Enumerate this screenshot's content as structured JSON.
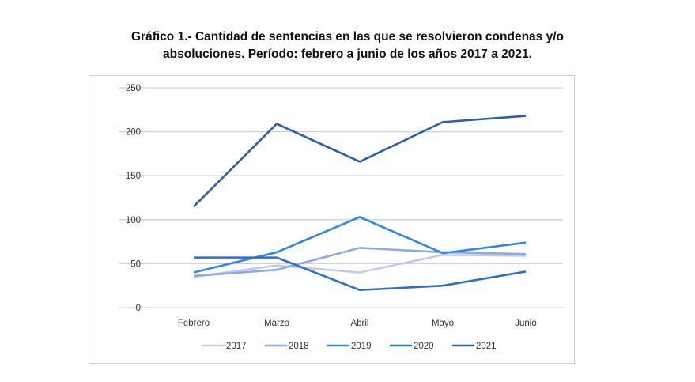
{
  "chart_data": {
    "type": "line",
    "title": [
      "Gráfico 1.- Cantidad de sentencias en las que se resolvieron condenas y/o",
      "absoluciones. Período: febrero a junio de los años 2017 a 2021."
    ],
    "categories": [
      "Febrero",
      "Marzo",
      "Abril",
      "Mayo",
      "Junio"
    ],
    "ylim": [
      0,
      250
    ],
    "yticks": [
      0,
      50,
      100,
      150,
      200,
      250
    ],
    "grid": true,
    "legend": "bottom",
    "series": [
      {
        "name": "2017",
        "color": "#c3c8ee",
        "values": [
          35,
          48,
          40,
          60,
          59
        ]
      },
      {
        "name": "2018",
        "color": "#8fa8e6",
        "values": [
          36,
          43,
          68,
          63,
          61
        ]
      },
      {
        "name": "2019",
        "color": "#2f86e6",
        "values": [
          40,
          63,
          103,
          62,
          74
        ]
      },
      {
        "name": "2020",
        "color": "#2b6fcc",
        "values": [
          57,
          57,
          20,
          25,
          41
        ]
      },
      {
        "name": "2021",
        "color": "#2a5fae",
        "values": [
          115,
          209,
          166,
          211,
          218
        ]
      }
    ]
  }
}
